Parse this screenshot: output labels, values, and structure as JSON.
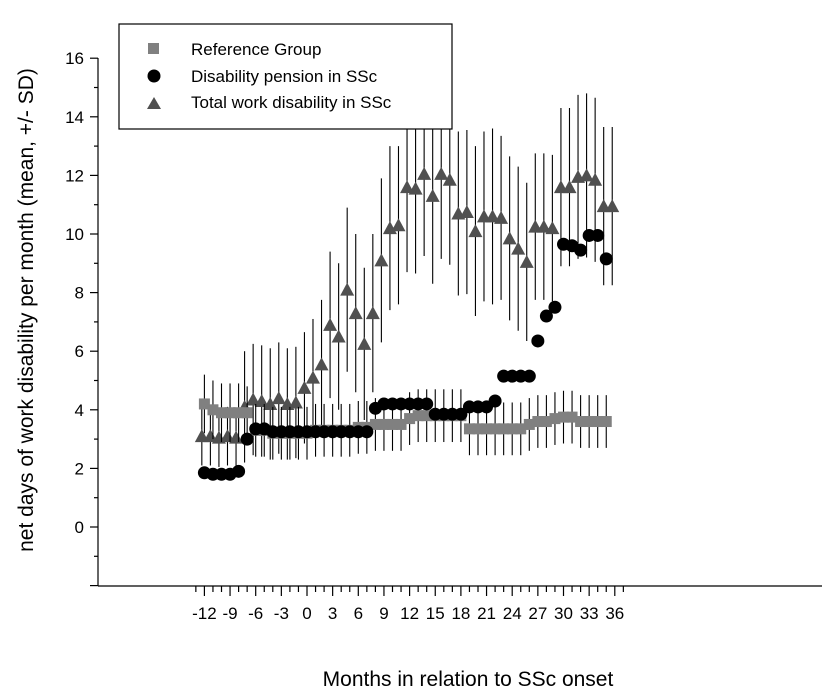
{
  "chart_data": {
    "type": "scatter",
    "title": "",
    "xlabel": "Months in relation to SSc onset",
    "ylabel": "net days of work disability per month (mean, +/- SD)",
    "xlim": [
      -13.5,
      37.5
    ],
    "ylim": [
      -2,
      16
    ],
    "x_ticks": [
      -12,
      -9,
      -6,
      -3,
      0,
      3,
      6,
      9,
      12,
      15,
      18,
      21,
      24,
      27,
      30,
      33,
      36
    ],
    "x_tick_labels": [
      "-12",
      "-9",
      "-6",
      "-3",
      "0",
      "3",
      "6",
      "9",
      "12",
      "15",
      "18",
      "21",
      "24",
      "27",
      "30",
      "33",
      "36"
    ],
    "y_ticks": [
      0,
      2,
      4,
      6,
      8,
      10,
      12,
      14,
      16
    ],
    "y_tick_labels": [
      "0",
      "2",
      "4",
      "6",
      "8",
      "10",
      "12",
      "14",
      "16"
    ],
    "grid": false,
    "legend_position": "top-left",
    "series": [
      {
        "name": "Reference Group",
        "marker": "square",
        "color": "#808080",
        "x": [
          -12,
          -11,
          -10,
          -9,
          -8,
          -7,
          -6,
          -5,
          -4,
          -3,
          -2,
          -1,
          0,
          1,
          2,
          3,
          4,
          5,
          6,
          7,
          8,
          9,
          10,
          11,
          12,
          13,
          14,
          15,
          16,
          17,
          18,
          19,
          20,
          21,
          22,
          23,
          24,
          25,
          26,
          27,
          28,
          29,
          30,
          31,
          32,
          33,
          34,
          35
        ],
        "y": [
          4.2,
          4.0,
          3.9,
          3.9,
          3.9,
          3.9,
          3.3,
          3.3,
          3.2,
          3.2,
          3.2,
          3.2,
          3.2,
          3.3,
          3.3,
          3.3,
          3.3,
          3.3,
          3.4,
          3.4,
          3.5,
          3.5,
          3.5,
          3.5,
          3.7,
          3.8,
          3.8,
          3.8,
          3.8,
          3.8,
          3.8,
          3.35,
          3.35,
          3.35,
          3.35,
          3.35,
          3.35,
          3.35,
          3.5,
          3.6,
          3.6,
          3.7,
          3.75,
          3.75,
          3.6,
          3.6,
          3.6,
          3.6
        ],
        "sd": [
          1.0,
          1.0,
          1.0,
          1.0,
          1.0,
          0.9,
          0.9,
          0.9,
          0.9,
          0.9,
          0.9,
          0.9,
          0.9,
          0.9,
          0.9,
          0.9,
          0.9,
          0.9,
          0.9,
          0.9,
          0.9,
          0.9,
          0.9,
          0.9,
          0.9,
          0.9,
          0.9,
          0.9,
          0.9,
          0.9,
          0.9,
          0.9,
          0.9,
          0.9,
          0.9,
          0.9,
          0.9,
          0.9,
          0.9,
          0.9,
          0.9,
          0.9,
          0.9,
          0.9,
          0.9,
          0.9,
          0.9,
          0.9
        ]
      },
      {
        "name": "Disability pension in SSc",
        "marker": "circle",
        "color": "#000000",
        "x": [
          -12,
          -11,
          -10,
          -9,
          -8,
          -7,
          -6,
          -5,
          -4,
          -3,
          -2,
          -1,
          0,
          1,
          2,
          3,
          4,
          5,
          6,
          7,
          8,
          9,
          10,
          11,
          12,
          13,
          14,
          15,
          16,
          17,
          18,
          19,
          20,
          21,
          22,
          23,
          24,
          25,
          26,
          27,
          28,
          29,
          30,
          31,
          32,
          33,
          34,
          35
        ],
        "y": [
          1.85,
          1.8,
          1.8,
          1.8,
          1.9,
          3.0,
          3.35,
          3.35,
          3.25,
          3.25,
          3.25,
          3.25,
          3.25,
          3.25,
          3.25,
          3.25,
          3.25,
          3.25,
          3.25,
          3.25,
          4.05,
          4.2,
          4.2,
          4.2,
          4.2,
          4.2,
          4.2,
          3.85,
          3.85,
          3.85,
          3.85,
          4.1,
          4.1,
          4.1,
          4.3,
          5.15,
          5.15,
          5.15,
          5.15,
          6.35,
          7.2,
          7.5,
          9.65,
          9.6,
          9.45,
          9.95,
          9.95,
          9.15
        ]
      },
      {
        "name": "Total work disability in SSc",
        "marker": "triangle",
        "color": "#505050",
        "x": [
          -12.3,
          -11.3,
          -10.3,
          -9.3,
          -8.3,
          -7.3,
          -6.3,
          -5.3,
          -4.3,
          -3.3,
          -2.3,
          -1.3,
          -0.3,
          0.7,
          1.7,
          2.7,
          3.7,
          4.7,
          5.7,
          6.7,
          7.7,
          8.7,
          9.7,
          10.7,
          11.7,
          12.7,
          13.7,
          14.7,
          15.7,
          16.7,
          17.7,
          18.7,
          19.7,
          20.7,
          21.7,
          22.7,
          23.7,
          24.7,
          25.7,
          26.7,
          27.7,
          28.7,
          29.7,
          30.7,
          31.7,
          32.7,
          33.7,
          34.7,
          35.7
        ],
        "y": [
          3.1,
          3.1,
          3.05,
          3.1,
          3.05,
          4.1,
          4.35,
          4.3,
          4.2,
          4.4,
          4.2,
          4.25,
          4.75,
          5.1,
          5.55,
          6.9,
          6.5,
          8.1,
          7.3,
          6.25,
          7.3,
          9.1,
          10.2,
          10.3,
          11.6,
          11.55,
          12.05,
          11.3,
          12.05,
          11.85,
          10.7,
          10.75,
          10.1,
          10.6,
          10.6,
          10.55,
          9.85,
          9.5,
          9.05,
          10.25,
          10.25,
          10.2,
          11.6,
          11.6,
          11.95,
          12.0,
          11.85,
          10.95,
          10.95
        ],
        "sd": [
          1.0,
          1.0,
          1.0,
          1.0,
          1.0,
          1.9,
          1.9,
          1.9,
          1.9,
          1.9,
          1.9,
          1.9,
          1.9,
          2.0,
          2.2,
          2.5,
          2.5,
          2.8,
          2.7,
          2.6,
          2.7,
          2.8,
          2.8,
          2.7,
          2.9,
          2.9,
          2.8,
          3.0,
          2.9,
          2.9,
          2.8,
          2.8,
          2.9,
          2.9,
          3.0,
          2.8,
          2.8,
          2.8,
          2.7,
          2.5,
          2.5,
          2.5,
          2.7,
          2.7,
          2.8,
          2.8,
          2.8,
          2.7,
          2.7
        ]
      }
    ]
  }
}
